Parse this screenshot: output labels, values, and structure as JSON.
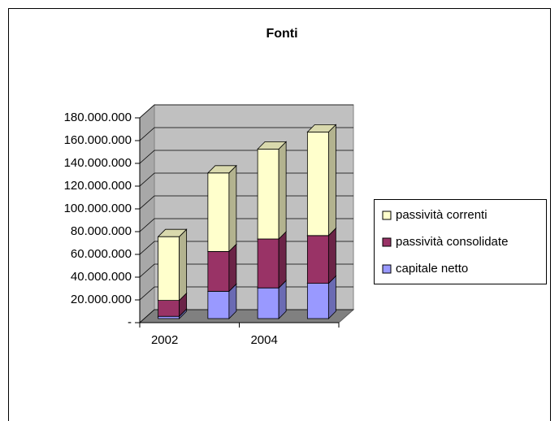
{
  "chart_data": {
    "type": "bar3d_stacked",
    "title": "Fonti",
    "categories": [
      "2002",
      null,
      "2004",
      null
    ],
    "series": [
      {
        "name": "capitale netto",
        "color": "#9999FF",
        "values": [
          2000000,
          24000000,
          27000000,
          31000000
        ]
      },
      {
        "name": "passività consolidate",
        "color": "#993366",
        "values": [
          14000000,
          35000000,
          43000000,
          42000000
        ]
      },
      {
        "name": "passività correnti",
        "color": "#FFFFCC",
        "values": [
          56000000,
          69000000,
          79000000,
          91000000
        ]
      }
    ],
    "ylim": [
      0,
      180000000
    ],
    "yticks": [
      {
        "value": 0,
        "label": "-"
      },
      {
        "value": 20000000,
        "label": "20.000.000"
      },
      {
        "value": 40000000,
        "label": "40.000.000"
      },
      {
        "value": 60000000,
        "label": "60.000.000"
      },
      {
        "value": 80000000,
        "label": "80.000.000"
      },
      {
        "value": 100000000,
        "label": "100.000.000"
      },
      {
        "value": 120000000,
        "label": "120.000.000"
      },
      {
        "value": 140000000,
        "label": "140.000.000"
      },
      {
        "value": 160000000,
        "label": "160.000.000"
      },
      {
        "value": 180000000,
        "label": "180.000.000"
      }
    ],
    "grid": true,
    "legend": "right"
  }
}
